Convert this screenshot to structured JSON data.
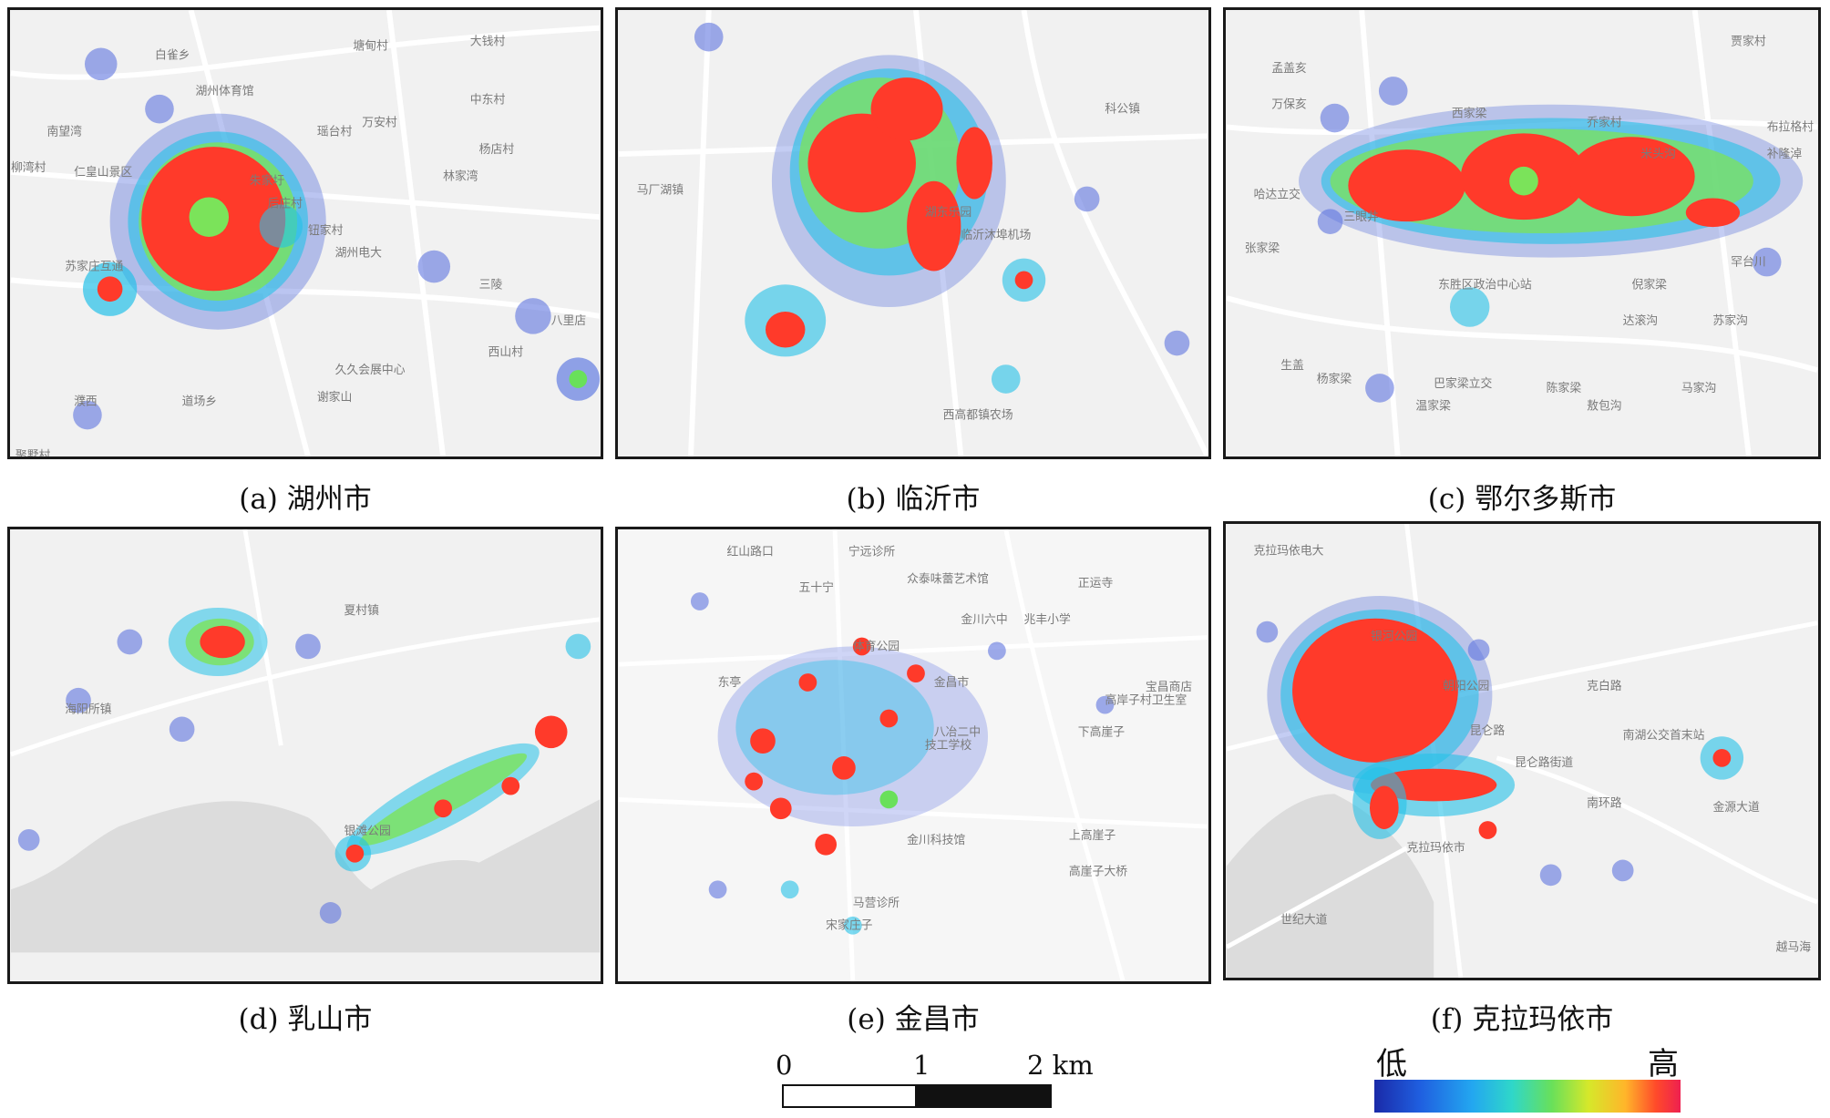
{
  "panels": [
    {
      "id": "a",
      "caption": "(a) 湖州市",
      "places": [
        "白雀乡",
        "湖州体育馆",
        "塘甸村",
        "大钱村",
        "中东村",
        "万安村",
        "南望湾",
        "瑶台村",
        "杨店村",
        "仁皇山景区",
        "林家湾",
        "朱家圩",
        "后庄村",
        "钮家村",
        "湖州电大",
        "苏家庄互通",
        "三陵",
        "西山村",
        "久久会展中心",
        "谢家山",
        "道场乡",
        "濮西",
        "八里店",
        "柳湾村",
        "聚墅村"
      ]
    },
    {
      "id": "b",
      "caption": "(b) 临沂市",
      "places": [
        "马厂湖镇",
        "湖东乐园",
        "临沂沐埠机场",
        "科公镇",
        "西高都镇农场"
      ]
    },
    {
      "id": "c",
      "caption": "(c) 鄂尔多斯市",
      "places": [
        "贾家村",
        "孟盖亥",
        "万保亥",
        "西家梁",
        "乔家村",
        "米头沟",
        "布拉格村",
        "补隆淖",
        "哈达立交",
        "三眼井",
        "张家梁",
        "东胜区政治中心站",
        "倪家梁",
        "达滚沟",
        "苏家沟",
        "罕台川",
        "生盖",
        "杨家梁",
        "巴家梁立交",
        "陈家梁",
        "马家沟",
        "温家梁",
        "敖包沟"
      ]
    },
    {
      "id": "d",
      "caption": "(d) 乳山市",
      "places": [
        "夏村镇",
        "海阳所镇",
        "银滩公园"
      ]
    },
    {
      "id": "e",
      "caption": "(e) 金昌市",
      "places": [
        "红山路口",
        "宁远诊所",
        "众泰味蕾艺术馆",
        "五十宁",
        "正运寺",
        "金川六中",
        "兆丰小学",
        "体育公园",
        "东亭",
        "金昌市",
        "宝昌商店",
        "高岸子村卫生室",
        "下高崖子",
        "八冶二中",
        "技工学校",
        "金川科技馆",
        "上高崖子",
        "高崖子大桥",
        "马营诊所",
        "宋家庄子"
      ]
    },
    {
      "id": "f",
      "caption": "(f) 克拉玛依市",
      "places": [
        "克拉玛依电大",
        "银河公园",
        "朝阳公园",
        "克白路",
        "昆仑路",
        "昆仑路街道",
        "南湖公交首末站",
        "金源大道",
        "南环路",
        "世纪大道",
        "克拉玛依市",
        "越马海"
      ]
    }
  ],
  "scale_bar": {
    "ticks": [
      "0",
      "1",
      "2 km"
    ]
  },
  "legend": {
    "low": "低",
    "high": "高",
    "colors": [
      "#1a2aa8",
      "#23a7f0",
      "#69e05a",
      "#ffb52a",
      "#ee2050"
    ]
  }
}
